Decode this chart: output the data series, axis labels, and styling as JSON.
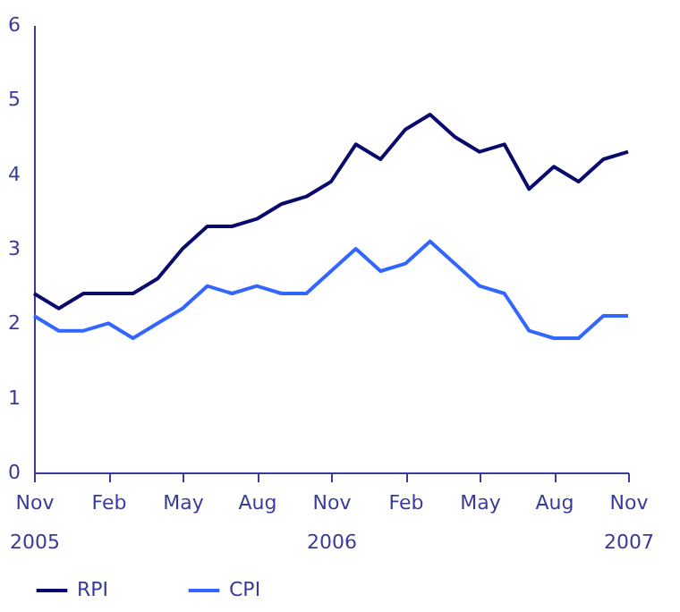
{
  "chart_data": {
    "type": "line",
    "categories": [
      "Nov 2005",
      null,
      null,
      "Feb",
      null,
      null,
      "May",
      null,
      null,
      "Aug",
      null,
      null,
      "Nov 2006",
      null,
      null,
      "Feb",
      null,
      null,
      "May",
      null,
      null,
      "Aug",
      null,
      null,
      "Nov 2007"
    ],
    "series": [
      {
        "name": "RPI",
        "color": "#0a0a6e",
        "values": [
          2.4,
          2.2,
          2.4,
          2.4,
          2.4,
          2.6,
          3.0,
          3.3,
          3.3,
          3.4,
          3.6,
          3.7,
          3.9,
          4.4,
          4.2,
          4.6,
          4.8,
          4.5,
          4.3,
          4.4,
          3.8,
          4.1,
          3.9,
          4.2,
          4.3
        ]
      },
      {
        "name": "CPI",
        "color": "#3366ff",
        "values": [
          2.1,
          1.9,
          1.9,
          2.0,
          1.8,
          2.0,
          2.2,
          2.5,
          2.4,
          2.5,
          2.4,
          2.4,
          2.7,
          3.0,
          2.7,
          2.8,
          3.1,
          2.8,
          2.5,
          2.4,
          1.9,
          1.8,
          1.8,
          2.1,
          2.1
        ]
      }
    ],
    "ylim": [
      0,
      6
    ],
    "yticks": [
      0,
      1,
      2,
      3,
      4,
      5,
      6
    ],
    "grid": false,
    "legend": "bottom",
    "marker": "none",
    "line_style": "solid"
  }
}
